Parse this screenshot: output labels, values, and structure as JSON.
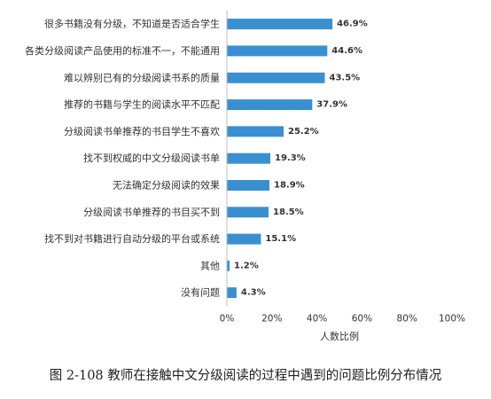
{
  "figure": {
    "caption": "图 2-108  教师在接触中文分级阅读的过程中遇到的问题比例分布情况"
  },
  "chart_data": {
    "type": "bar",
    "orientation": "horizontal",
    "categories": [
      "很多书籍没有分级，不知道是否适合学生",
      "各类分级阅读产品使用的标准不一，不能通用",
      "难以辨别已有的分级阅读书系的质量",
      "推荐的书籍与学生的阅读水平不匹配",
      "分级阅读书单推荐的书目学生不喜欢",
      "找不到权威的中文分级阅读书单",
      "无法确定分级阅读的效果",
      "分级阅读书单推荐的书目买不到",
      "找不到对书籍进行自动分级的平台或系统",
      "其他",
      "没有问题"
    ],
    "values": [
      46.9,
      44.6,
      43.5,
      37.9,
      25.2,
      19.3,
      18.9,
      18.5,
      15.1,
      1.2,
      4.3
    ],
    "value_labels": [
      "46.9%",
      "44.6%",
      "43.5%",
      "37.9%",
      "25.2%",
      "19.3%",
      "18.9%",
      "18.5%",
      "15.1%",
      "1.2%",
      "4.3%"
    ],
    "xlabel": "人数比例",
    "xlim": [
      0,
      100
    ],
    "xticks": [
      0,
      20,
      40,
      60,
      80,
      100
    ],
    "xtick_labels": [
      "0%",
      "20%",
      "40%",
      "60%",
      "80%",
      "100%"
    ],
    "grid": false,
    "legend": "none",
    "bar_color": "#3a8fd0",
    "axis_color": "#bfbfbf"
  }
}
